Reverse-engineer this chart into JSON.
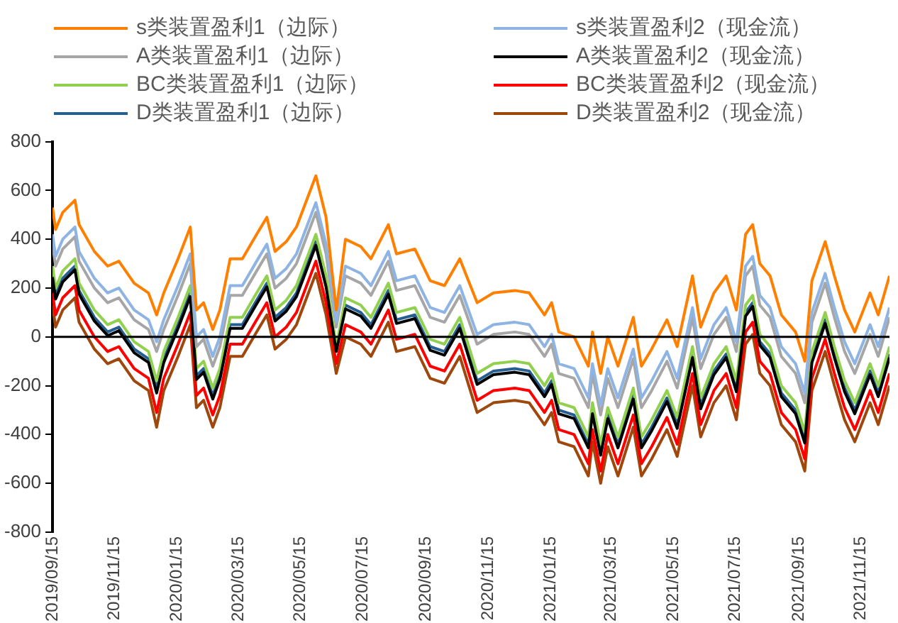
{
  "chart_data": {
    "type": "line",
    "x": [
      "2019-09-15",
      "2019-09-18",
      "2019-09-25",
      "2019-10-07",
      "2019-10-11",
      "2019-10-26",
      "2019-11-08",
      "2019-11-19",
      "2019-12-04",
      "2019-12-18",
      "2019-12-26",
      "2020-01-02",
      "2020-01-16",
      "2020-01-28",
      "2020-02-03",
      "2020-02-10",
      "2020-02-19",
      "2020-02-26",
      "2020-03-07",
      "2020-03-19",
      "2020-04-02",
      "2020-04-12",
      "2020-04-20",
      "2020-05-01",
      "2020-05-11",
      "2020-05-30",
      "2020-06-09",
      "2020-06-19",
      "2020-06-28",
      "2020-07-13",
      "2020-07-23",
      "2020-08-09",
      "2020-08-17",
      "2020-09-04",
      "2020-09-19",
      "2020-10-03",
      "2020-10-18",
      "2020-11-04",
      "2020-11-20",
      "2020-12-11",
      "2020-12-25",
      "2021-01-09",
      "2021-01-16",
      "2021-01-23",
      "2021-02-07",
      "2021-02-21",
      "2021-02-25",
      "2021-03-05",
      "2021-03-12",
      "2021-03-22",
      "2021-04-06",
      "2021-04-14",
      "2021-04-24",
      "2021-05-09",
      "2021-05-19",
      "2021-06-03",
      "2021-06-11",
      "2021-06-24",
      "2021-07-06",
      "2021-07-16",
      "2021-07-25",
      "2021-08-01",
      "2021-08-08",
      "2021-08-18",
      "2021-08-29",
      "2021-09-12",
      "2021-09-21",
      "2021-09-28",
      "2021-10-11",
      "2021-10-20",
      "2021-10-30",
      "2021-11-09",
      "2021-11-24",
      "2021-12-02",
      "2021-12-13"
    ],
    "series": [
      {
        "name": "s类装置盈利1（边际）",
        "color": "#ff8000",
        "values": [
          530,
          440,
          510,
          560,
          460,
          350,
          290,
          310,
          220,
          180,
          90,
          180,
          320,
          450,
          110,
          140,
          30,
          110,
          320,
          320,
          420,
          490,
          350,
          390,
          450,
          660,
          490,
          110,
          400,
          370,
          320,
          460,
          340,
          360,
          230,
          210,
          320,
          140,
          180,
          190,
          180,
          90,
          140,
          20,
          0,
          -120,
          20,
          -150,
          0,
          -120,
          80,
          -120,
          -50,
          70,
          -40,
          250,
          40,
          180,
          250,
          110,
          420,
          460,
          300,
          250,
          90,
          20,
          -100,
          230,
          390,
          250,
          110,
          20,
          180,
          90,
          250
        ]
      },
      {
        "name": "s类装置盈利2（现金流）",
        "color": "#8db4e2",
        "values": [
          420,
          330,
          400,
          450,
          350,
          240,
          180,
          200,
          110,
          70,
          -20,
          70,
          210,
          340,
          0,
          30,
          -80,
          0,
          210,
          210,
          310,
          380,
          240,
          280,
          340,
          550,
          380,
          60,
          290,
          260,
          210,
          350,
          230,
          250,
          120,
          100,
          210,
          10,
          50,
          60,
          50,
          -40,
          10,
          -110,
          -130,
          -250,
          -110,
          -280,
          -130,
          -250,
          -50,
          -250,
          -180,
          -60,
          -170,
          120,
          -90,
          50,
          120,
          -20,
          290,
          330,
          170,
          120,
          -40,
          -110,
          -230,
          100,
          260,
          120,
          -20,
          -110,
          50,
          -40,
          120
        ]
      },
      {
        "name": "A类装置盈利1（边际）",
        "color": "#a6a6a6",
        "values": [
          380,
          290,
          360,
          410,
          310,
          200,
          140,
          160,
          70,
          30,
          -60,
          30,
          170,
          300,
          -40,
          -10,
          -120,
          -40,
          170,
          170,
          270,
          340,
          200,
          240,
          300,
          510,
          340,
          40,
          250,
          220,
          170,
          310,
          190,
          210,
          80,
          60,
          170,
          -30,
          10,
          20,
          10,
          -80,
          -30,
          -150,
          -170,
          -290,
          -150,
          -320,
          -170,
          -290,
          -90,
          -290,
          -220,
          -100,
          -210,
          80,
          -130,
          10,
          80,
          -60,
          250,
          290,
          130,
          80,
          -80,
          -150,
          -270,
          60,
          220,
          80,
          -60,
          -150,
          10,
          -80,
          80
        ]
      },
      {
        "name": "A类装置盈利2（现金流）",
        "color": "#000000",
        "values": [
          245,
          155,
          225,
          275,
          175,
          65,
          5,
          25,
          -65,
          -105,
          -230,
          -105,
          35,
          165,
          -175,
          -145,
          -255,
          -175,
          35,
          35,
          135,
          205,
          65,
          105,
          165,
          375,
          205,
          -60,
          115,
          85,
          35,
          175,
          55,
          75,
          -55,
          -75,
          35,
          -195,
          -155,
          -145,
          -155,
          -245,
          -195,
          -315,
          -335,
          -455,
          -315,
          -485,
          -335,
          -455,
          -255,
          -455,
          -385,
          -265,
          -375,
          -85,
          -295,
          -155,
          -85,
          -225,
          85,
          125,
          -35,
          -85,
          -245,
          -315,
          -435,
          -105,
          55,
          -85,
          -225,
          -315,
          -155,
          -245,
          -85
        ]
      },
      {
        "name": "BC类装置盈利1（边际）",
        "color": "#92d050",
        "values": [
          290,
          200,
          270,
          320,
          220,
          110,
          50,
          70,
          -20,
          -60,
          -180,
          -60,
          80,
          210,
          -130,
          -100,
          -210,
          -130,
          80,
          80,
          180,
          250,
          110,
          150,
          210,
          420,
          250,
          -40,
          160,
          130,
          80,
          220,
          100,
          120,
          -10,
          -30,
          80,
          -150,
          -110,
          -100,
          -110,
          -200,
          -150,
          -270,
          -290,
          -410,
          -270,
          -440,
          -290,
          -410,
          -210,
          -410,
          -340,
          -220,
          -330,
          -40,
          -250,
          -110,
          -40,
          -180,
          130,
          170,
          10,
          -40,
          -200,
          -270,
          -390,
          -60,
          100,
          -40,
          -180,
          -270,
          -110,
          -200,
          -40
        ]
      },
      {
        "name": "BC类装置盈利2（现金流）",
        "color": "#ff0000",
        "values": [
          180,
          90,
          160,
          210,
          110,
          0,
          -60,
          -40,
          -130,
          -170,
          -310,
          -170,
          -30,
          100,
          -240,
          -210,
          -320,
          -240,
          -30,
          -30,
          70,
          140,
          0,
          40,
          100,
          310,
          140,
          -110,
          50,
          20,
          -30,
          110,
          -10,
          10,
          -120,
          -140,
          -30,
          -260,
          -220,
          -210,
          -220,
          -310,
          -260,
          -380,
          -400,
          -520,
          -380,
          -550,
          -400,
          -520,
          -320,
          -520,
          -450,
          -330,
          -440,
          -150,
          -360,
          -220,
          -150,
          -290,
          20,
          60,
          -100,
          -150,
          -310,
          -380,
          -500,
          -170,
          -10,
          -150,
          -290,
          -380,
          -220,
          -310,
          -150
        ]
      },
      {
        "name": "D类装置盈利1（边际）",
        "color": "#255e91",
        "values": [
          260,
          170,
          240,
          290,
          190,
          80,
          20,
          40,
          -50,
          -90,
          -210,
          -90,
          50,
          180,
          -160,
          -130,
          -240,
          -160,
          50,
          50,
          150,
          220,
          80,
          120,
          180,
          390,
          220,
          -50,
          130,
          100,
          50,
          190,
          70,
          90,
          -40,
          -60,
          50,
          -180,
          -140,
          -130,
          -140,
          -230,
          -180,
          -300,
          -320,
          -440,
          -300,
          -470,
          -320,
          -440,
          -240,
          -440,
          -370,
          -250,
          -360,
          -70,
          -280,
          -140,
          -70,
          -210,
          100,
          140,
          -20,
          -70,
          -230,
          -300,
          -420,
          -90,
          70,
          -70,
          -210,
          -300,
          -140,
          -230,
          -70
        ]
      },
      {
        "name": "D类装置盈利2（现金流）",
        "color": "#9e480e",
        "values": [
          130,
          40,
          110,
          160,
          60,
          -50,
          -110,
          -90,
          -180,
          -220,
          -370,
          -220,
          -80,
          50,
          -290,
          -260,
          -370,
          -290,
          -80,
          -80,
          20,
          90,
          -50,
          -10,
          50,
          260,
          90,
          -150,
          0,
          -30,
          -80,
          60,
          -60,
          -40,
          -170,
          -190,
          -80,
          -310,
          -270,
          -260,
          -270,
          -360,
          -310,
          -430,
          -450,
          -570,
          -430,
          -600,
          -450,
          -570,
          -370,
          -570,
          -500,
          -380,
          -490,
          -200,
          -410,
          -270,
          -200,
          -340,
          -30,
          10,
          -150,
          -200,
          -360,
          -430,
          -550,
          -220,
          -60,
          -200,
          -340,
          -430,
          -270,
          -360,
          -200
        ]
      }
    ],
    "xlim": [
      "2019-09-15",
      "2021-12-13"
    ],
    "xticks": [
      {
        "value": "2019-09-15",
        "label": "2019/09/15"
      },
      {
        "value": "2019-11-15",
        "label": "2019/11/15"
      },
      {
        "value": "2020-01-15",
        "label": "2020/01/15"
      },
      {
        "value": "2020-03-15",
        "label": "2020/03/15"
      },
      {
        "value": "2020-05-15",
        "label": "2020/05/15"
      },
      {
        "value": "2020-07-15",
        "label": "2020/07/15"
      },
      {
        "value": "2020-09-15",
        "label": "2020/09/15"
      },
      {
        "value": "2020-11-15",
        "label": "2020/11/15"
      },
      {
        "value": "2021-01-15",
        "label": "2021/01/15"
      },
      {
        "value": "2021-03-15",
        "label": "2021/03/15"
      },
      {
        "value": "2021-05-15",
        "label": "2021/05/15"
      },
      {
        "value": "2021-07-15",
        "label": "2021/07/15"
      },
      {
        "value": "2021-09-15",
        "label": "2021/09/15"
      },
      {
        "value": "2021-11-15",
        "label": "2021/11/15"
      }
    ],
    "ylim": [
      -800,
      800
    ],
    "yticks": [
      -800,
      -600,
      -400,
      -200,
      0,
      200,
      400,
      600,
      800
    ],
    "ref_lines": [
      {
        "axis": "y",
        "value": 0,
        "color": "#000000"
      }
    ],
    "grid": false,
    "legend": "top",
    "marker": "none",
    "line_style": "solid"
  }
}
